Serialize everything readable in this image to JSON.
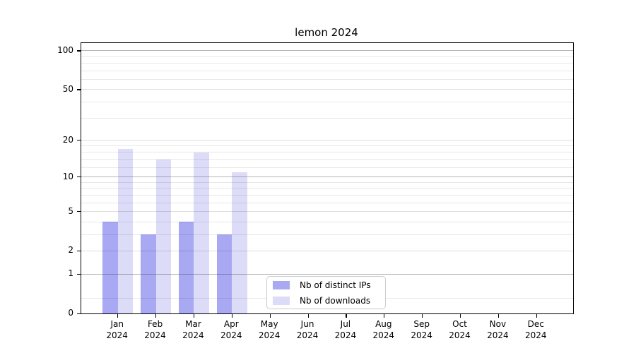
{
  "chart_data": {
    "type": "bar",
    "title": "lemon 2024",
    "categories": [
      "Jan",
      "Feb",
      "Mar",
      "Apr",
      "May",
      "Jun",
      "Jul",
      "Aug",
      "Sep",
      "Oct",
      "Nov",
      "Dec"
    ],
    "year_label": "2024",
    "series": [
      {
        "name": "Nb of distinct IPs",
        "color": "#a8a8f3",
        "values": [
          4,
          3,
          4,
          3,
          0,
          0,
          0,
          0,
          0,
          0,
          0,
          0
        ]
      },
      {
        "name": "Nb of downloads",
        "color": "#dcdcf9",
        "values": [
          17,
          14,
          16,
          11,
          0,
          0,
          0,
          0,
          0,
          0,
          0,
          0
        ]
      }
    ],
    "xlabel": "",
    "ylabel": "",
    "yscale": "log1p",
    "ylim": [
      0,
      114.6
    ],
    "yticks": [
      0,
      1,
      2,
      5,
      10,
      20,
      50,
      100
    ],
    "major_gridlines": [
      1,
      10,
      100
    ],
    "light_gridlines": [
      2,
      5,
      20,
      50
    ],
    "minor_gridlines": [
      0.3,
      3,
      4,
      6,
      7,
      8,
      9,
      12,
      14,
      16,
      18,
      30,
      40,
      60,
      70,
      80,
      90
    ],
    "grid": true,
    "legend_position": "lower center"
  },
  "colors": {
    "background": "#ffffff",
    "spine": "#000000",
    "major_grid": "#b0b0b0",
    "minor_grid": "#e8e8e8"
  }
}
